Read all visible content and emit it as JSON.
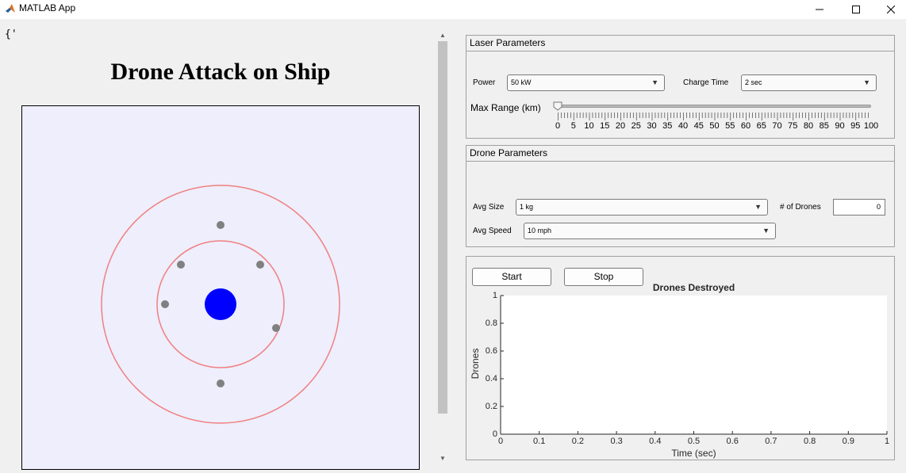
{
  "window": {
    "title": "MATLAB App",
    "minimize_glyph": "—",
    "maximize_glyph": "☐",
    "close_glyph": "✕",
    "icon": "matlab-icon"
  },
  "stray_text": "{'",
  "app_title": "Drone Attack on Ship",
  "laser_panel": {
    "title": "Laser Parameters",
    "power_label": "Power",
    "power_value": "50 kW",
    "charge_label": "Charge Time",
    "charge_value": "2 sec",
    "range_label": "Max Range (km)",
    "range_value": 0,
    "range_ticks": [
      "0",
      "5",
      "10",
      "15",
      "20",
      "25",
      "30",
      "35",
      "40",
      "45",
      "50",
      "55",
      "60",
      "65",
      "70",
      "75",
      "80",
      "85",
      "90",
      "95",
      "100"
    ]
  },
  "drone_panel": {
    "title": "Drone Parameters",
    "size_label": "Avg Size",
    "size_value": "1 kg",
    "count_label": "# of Drones",
    "count_value": "0",
    "speed_label": "Avg Speed",
    "speed_value": "10 mph"
  },
  "controls": {
    "start_label": "Start",
    "stop_label": "Stop"
  },
  "chart_data": {
    "type": "line",
    "title": "Drones Destroyed",
    "xlabel": "Time (sec)",
    "ylabel": "Drones",
    "xlim": [
      0,
      1
    ],
    "ylim": [
      0,
      1
    ],
    "xticks": [
      "0",
      "0.1",
      "0.2",
      "0.3",
      "0.4",
      "0.5",
      "0.6",
      "0.7",
      "0.8",
      "0.9",
      "1"
    ],
    "yticks": [
      "0",
      "0.2",
      "0.4",
      "0.6",
      "0.8",
      "1"
    ],
    "series": []
  },
  "colors": {
    "ship": "#0000ff",
    "drone": "#808080",
    "range_ring": "#f08080",
    "field_bg": "#eeeefc"
  }
}
